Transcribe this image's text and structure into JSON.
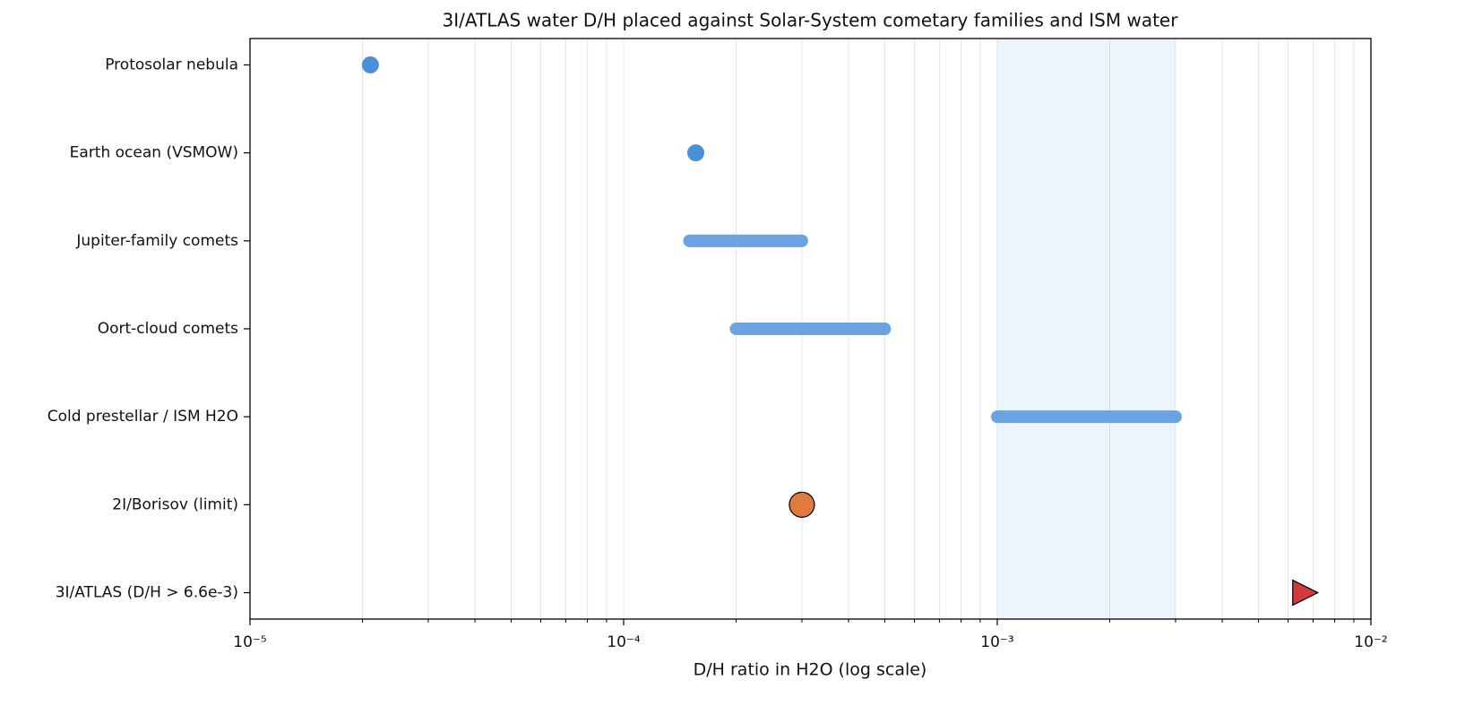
{
  "chart_data": {
    "type": "range",
    "title": "3I/ATLAS water D/H placed against Solar-System cometary families and ISM water",
    "x_label": "D/H ratio in H2O (log scale)",
    "x_scale": "log",
    "xlim": [
      1e-05,
      0.01
    ],
    "xticks": [
      {
        "value": 1e-05,
        "label": "10⁻⁵"
      },
      {
        "value": 0.0001,
        "label": "10⁻⁴"
      },
      {
        "value": 0.001,
        "label": "10⁻³"
      },
      {
        "value": 0.01,
        "label": "10⁻²"
      }
    ],
    "xminorticks": [
      2e-05,
      3e-05,
      4e-05,
      5e-05,
      6e-05,
      7e-05,
      8e-05,
      9e-05,
      0.0002,
      0.0003,
      0.0004,
      0.0005,
      0.0006,
      0.0007,
      0.0008,
      0.0009,
      0.002,
      0.003,
      0.004,
      0.005,
      0.006,
      0.007,
      0.008,
      0.009
    ],
    "grid": true,
    "shaded_band": {
      "range": [
        0.001,
        0.003
      ],
      "color": "#eef4fd"
    },
    "categories": [
      "Protosolar nebula",
      "Earth ocean (VSMOW)",
      "Jupiter-family comets",
      "Oort-cloud comets",
      "Cold prestellar / ISM H2O",
      "2I/Borisov (limit)",
      "3I/ATLAS (D/H > 6.6e-3)"
    ],
    "series": [
      {
        "marker": "dot",
        "color": "#4a90d9",
        "values": [
          2.1e-05,
          0.000156,
          null,
          null,
          null,
          null,
          null
        ]
      },
      {
        "marker": "bar",
        "color": "#6aa3e0",
        "low": [
          null,
          null,
          0.00015,
          0.0002,
          0.001,
          null,
          null
        ],
        "high": [
          null,
          null,
          0.0003,
          0.0005,
          0.003,
          null,
          null
        ]
      },
      {
        "marker": "big-dot",
        "color": "#e07b3c",
        "values": [
          null,
          null,
          null,
          null,
          null,
          0.0003,
          null
        ]
      },
      {
        "marker": "triangle",
        "color": "#d13b3b",
        "values": [
          null,
          null,
          null,
          null,
          null,
          null,
          0.0066
        ]
      }
    ]
  }
}
